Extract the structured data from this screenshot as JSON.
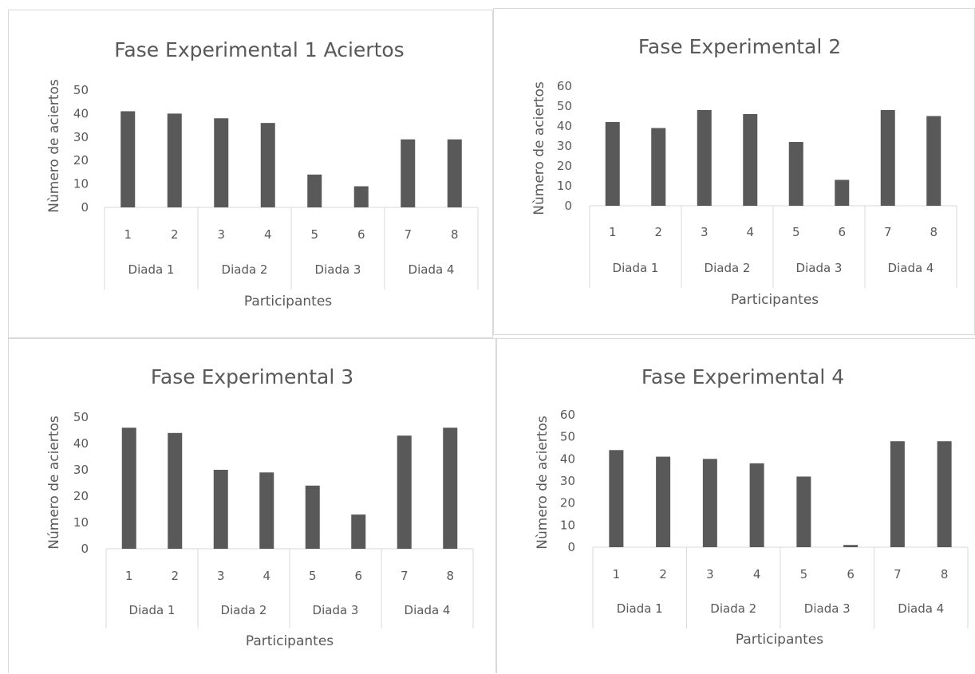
{
  "chart_data": [
    {
      "type": "bar",
      "title": "Fase Experimental 1 Aciertos",
      "xlabel": "Participantes",
      "ylabel": "Nùmero de aciertos",
      "ylim": [
        0,
        50
      ],
      "yticks": [
        "0",
        "10",
        "20",
        "30",
        "40",
        "50"
      ],
      "categories": [
        "1",
        "2",
        "3",
        "4",
        "5",
        "6",
        "7",
        "8"
      ],
      "groups": [
        "Diada 1",
        "Diada 2",
        "Diada 3",
        "Diada 4"
      ],
      "values": [
        41,
        40,
        38,
        36,
        14,
        9,
        29,
        29
      ],
      "color": "#595959",
      "grid": false,
      "legend": "none"
    },
    {
      "type": "bar",
      "title": "Fase Experimental 2",
      "xlabel": "Participantes",
      "ylabel": "Nùmero de aciertos",
      "ylim": [
        0,
        60
      ],
      "yticks": [
        "0",
        "10",
        "20",
        "30",
        "40",
        "50",
        "60"
      ],
      "categories": [
        "1",
        "2",
        "3",
        "4",
        "5",
        "6",
        "7",
        "8"
      ],
      "groups": [
        "Diada 1",
        "Diada 2",
        "Diada 3",
        "Diada 4"
      ],
      "values": [
        42,
        39,
        48,
        46,
        32,
        13,
        48,
        45
      ],
      "color": "#595959",
      "grid": false,
      "legend": "none"
    },
    {
      "type": "bar",
      "title": "Fase Experimental 3",
      "xlabel": "Participantes",
      "ylabel": "Número de aciertos",
      "ylim": [
        0,
        50
      ],
      "yticks": [
        "0",
        "10",
        "20",
        "30",
        "40",
        "50"
      ],
      "categories": [
        "1",
        "2",
        "3",
        "4",
        "5",
        "6",
        "7",
        "8"
      ],
      "groups": [
        "Diada 1",
        "Diada 2",
        "Diada 3",
        "Diada 4"
      ],
      "values": [
        46,
        44,
        30,
        29,
        24,
        13,
        43,
        46
      ],
      "color": "#595959",
      "grid": false,
      "legend": "none"
    },
    {
      "type": "bar",
      "title": "Fase Experimental 4",
      "xlabel": "Participantes",
      "ylabel": "Nùmero de aciertos",
      "ylim": [
        0,
        60
      ],
      "yticks": [
        "0",
        "10",
        "20",
        "30",
        "40",
        "50",
        "60"
      ],
      "categories": [
        "1",
        "2",
        "3",
        "4",
        "5",
        "6",
        "7",
        "8"
      ],
      "groups": [
        "Diada 1",
        "Diada 2",
        "Diada 3",
        "Diada 4"
      ],
      "values": [
        44,
        41,
        40,
        38,
        32,
        1,
        48,
        48
      ],
      "color": "#595959",
      "grid": false,
      "legend": "none"
    }
  ]
}
